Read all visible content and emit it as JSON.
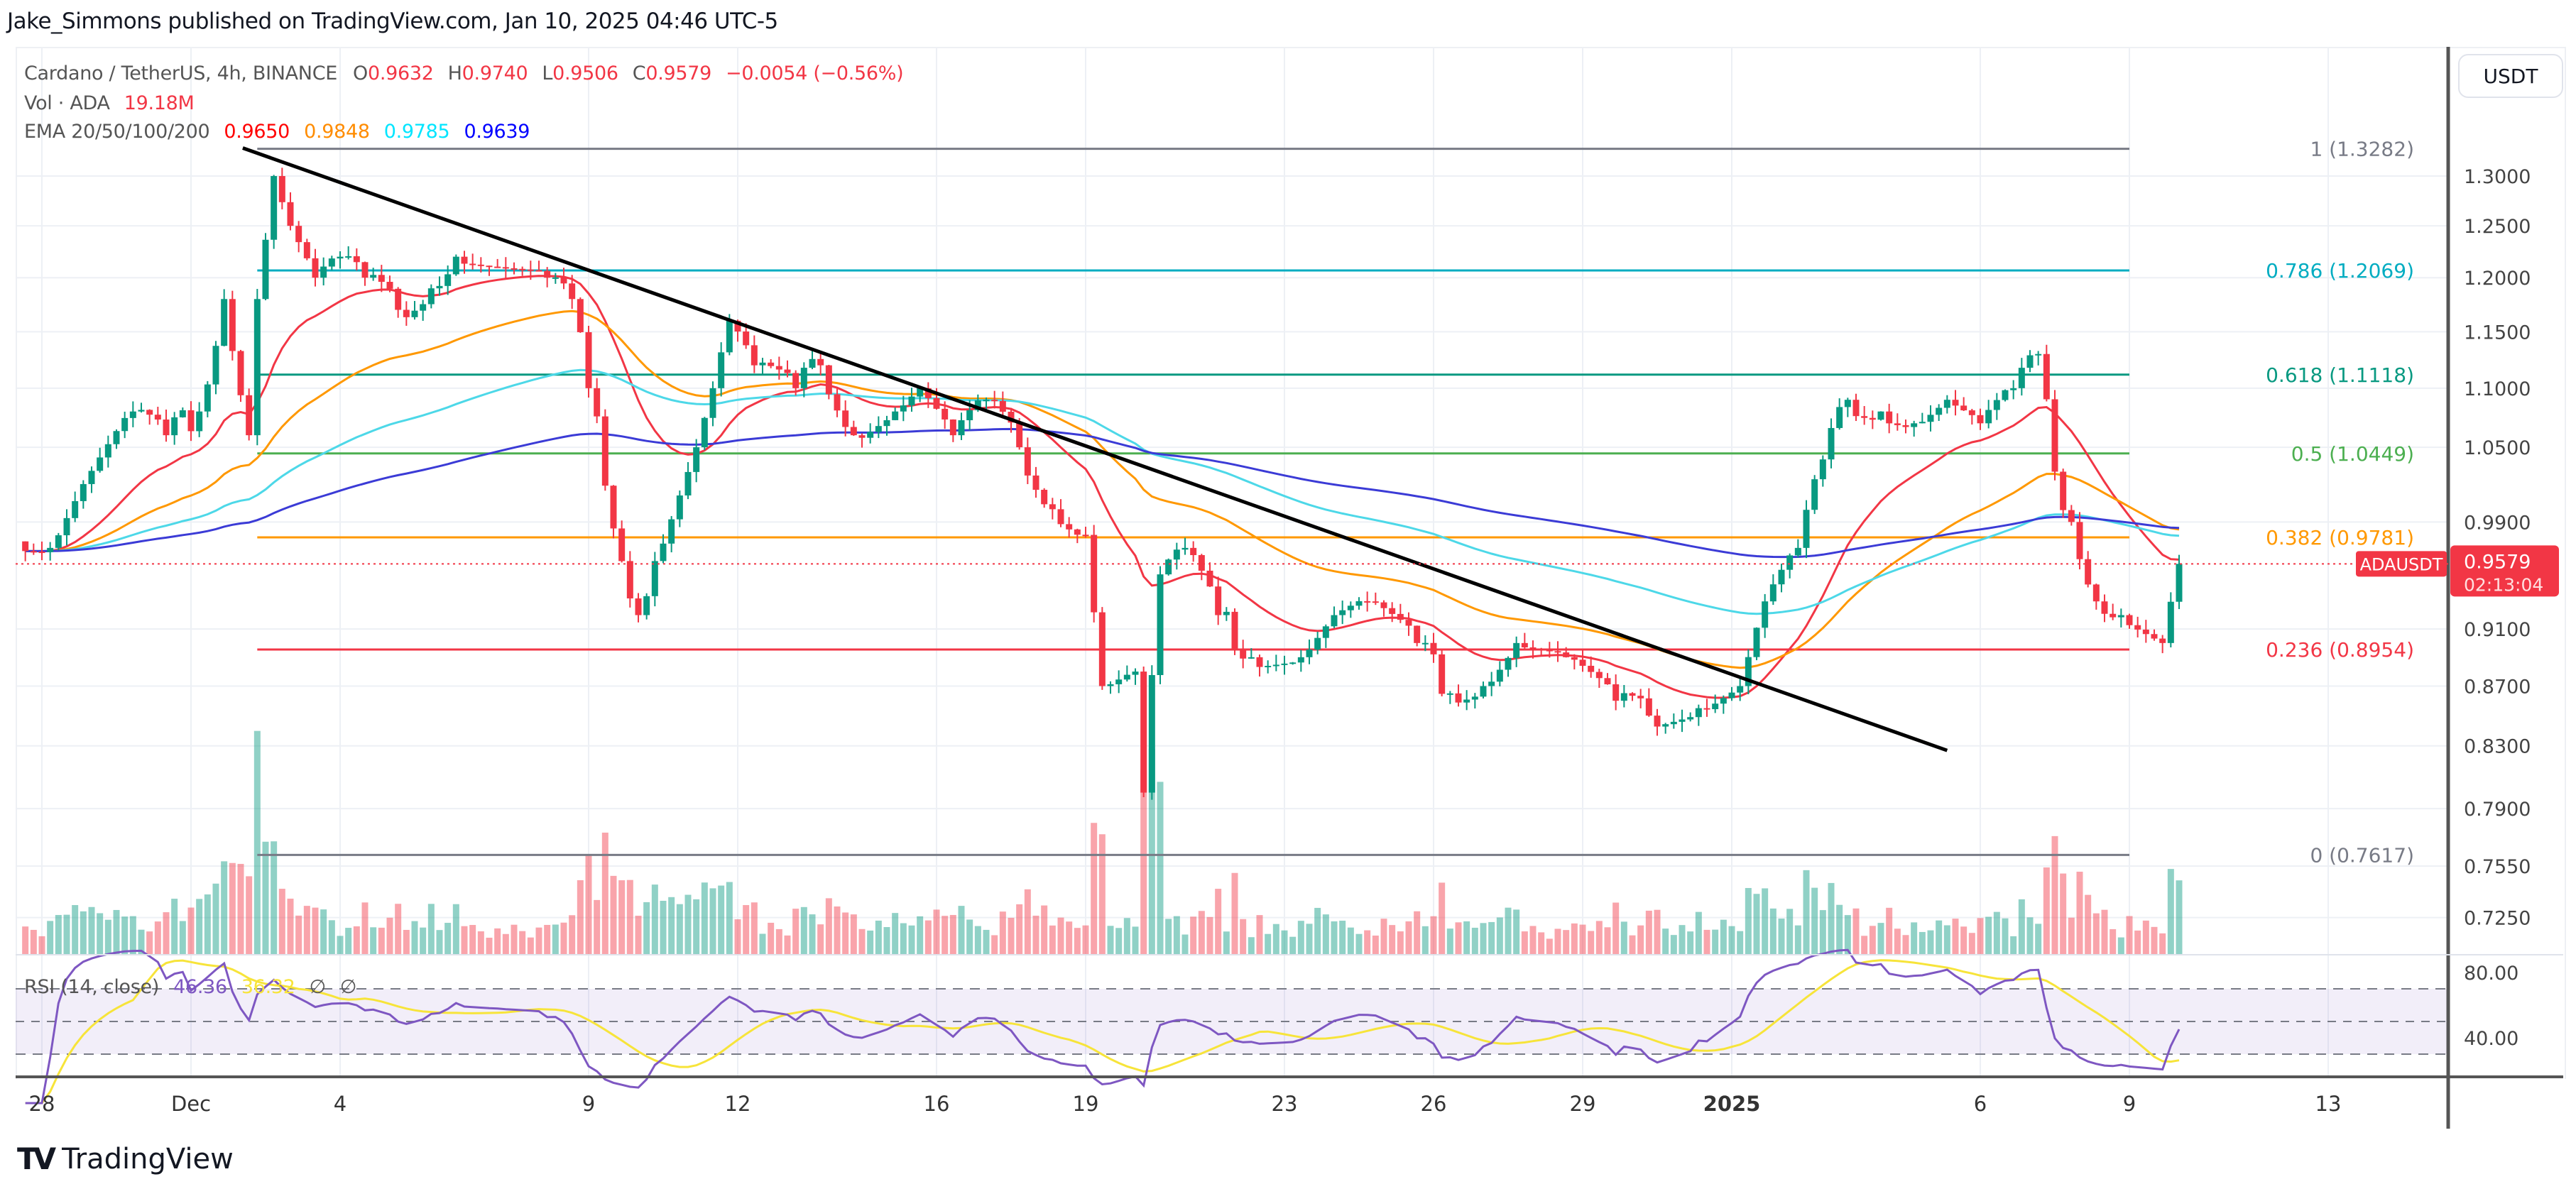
{
  "header": {
    "published": "Jake_Simmons published on TradingView.com, Jan 10, 2025 04:46 UTC-5"
  },
  "legend": {
    "symbol": "Cardano / TetherUS, 4h, BINANCE",
    "o_label": "O",
    "o": "0.9632",
    "h_label": "H",
    "h": "0.9740",
    "l_label": "L",
    "l": "0.9506",
    "c_label": "C",
    "c": "0.9579",
    "change": "−0.0054 (−0.56%)",
    "vol_label": "Vol · ADA",
    "vol": "19.18M",
    "ema_label": "EMA 20/50/100/200",
    "ema": [
      "0.9650",
      "0.9848",
      "0.9785",
      "0.9639"
    ]
  },
  "colors": {
    "up": "#089981",
    "down": "#f23645",
    "ema": [
      "#f23645",
      "#ff9800",
      "#4dd8e8",
      "#3b3bd6"
    ],
    "ema_legend": [
      "#ff0000",
      "#ff8c00",
      "#00e5ff",
      "#0000ff"
    ],
    "rsi": "#7e57c2",
    "rsi_ma": "#f7e43a",
    "trendline": "#000000"
  },
  "axis": {
    "currency_button": "USDT",
    "symbol_tag": "ADAUSDT",
    "last_price": "0.9579",
    "countdown": "02:13:04"
  },
  "rsi": {
    "label": "RSI (14, close)",
    "value": "46.36",
    "ma_value": "36.32",
    "na1": "∅",
    "na2": "∅",
    "ticks": [
      "80.00",
      "40.00"
    ]
  },
  "footer": {
    "logo_text": "TradingView"
  },
  "chart_data": {
    "type": "candlestick",
    "title": "Cardano / TetherUS, 4h, BINANCE",
    "y_scale": "log",
    "ylim": [
      0.7,
      1.36
    ],
    "y_ticks": [
      "1.3000",
      "1.2500",
      "1.2000",
      "1.1500",
      "1.1000",
      "1.0500",
      "0.9900",
      "0.9100",
      "0.8700",
      "0.8300",
      "0.7900",
      "0.7550",
      "0.7250"
    ],
    "x_ticks": [
      {
        "label": "28",
        "date": "2024-11-28"
      },
      {
        "label": "Dec",
        "date": "2024-12-01"
      },
      {
        "label": "4",
        "date": "2024-12-04"
      },
      {
        "label": "9",
        "date": "2024-12-09"
      },
      {
        "label": "12",
        "date": "2024-12-12"
      },
      {
        "label": "16",
        "date": "2024-12-16"
      },
      {
        "label": "19",
        "date": "2024-12-19"
      },
      {
        "label": "23",
        "date": "2024-12-23"
      },
      {
        "label": "26",
        "date": "2024-12-26"
      },
      {
        "label": "29",
        "date": "2024-12-29"
      },
      {
        "label": "2025",
        "date": "2025-01-01"
      },
      {
        "label": "6",
        "date": "2025-01-06"
      },
      {
        "label": "9",
        "date": "2025-01-09"
      },
      {
        "label": "13",
        "date": "2025-01-13"
      }
    ],
    "grid": true,
    "close_series": [
      [
        "2024-11-27 12:00",
        0.975
      ],
      [
        "2024-11-28 04:00",
        0.97
      ],
      [
        "2024-11-28 20:00",
        1.02
      ],
      [
        "2024-11-29 20:00",
        1.08
      ],
      [
        "2024-11-30 12:00",
        1.06
      ],
      [
        "2024-12-01 04:00",
        1.08
      ],
      [
        "2024-12-01 16:00",
        1.18
      ],
      [
        "2024-12-02 04:00",
        1.06
      ],
      [
        "2024-12-02 08:00",
        1.18
      ],
      [
        "2024-12-02 16:00",
        1.3
      ],
      [
        "2024-12-03 00:00",
        1.25
      ],
      [
        "2024-12-03 12:00",
        1.2
      ],
      [
        "2024-12-04 00:00",
        1.22
      ],
      [
        "2024-12-04 12:00",
        1.2
      ],
      [
        "2024-12-05 04:00",
        1.17
      ],
      [
        "2024-12-05 20:00",
        1.19
      ],
      [
        "2024-12-06 08:00",
        1.22
      ],
      [
        "2024-12-07 04:00",
        1.21
      ],
      [
        "2024-12-08 04:00",
        1.2
      ],
      [
        "2024-12-08 16:00",
        1.18
      ],
      [
        "2024-12-09 00:00",
        1.1
      ],
      [
        "2024-12-09 16:00",
        0.96
      ],
      [
        "2024-12-10 00:00",
        0.92
      ],
      [
        "2024-12-10 08:00",
        0.96
      ],
      [
        "2024-12-11 04:00",
        1.05
      ],
      [
        "2024-12-11 12:00",
        1.1
      ],
      [
        "2024-12-11 20:00",
        1.16
      ],
      [
        "2024-12-12 08:00",
        1.12
      ],
      [
        "2024-12-13 04:00",
        1.1
      ],
      [
        "2024-12-13 16:00",
        1.12
      ],
      [
        "2024-12-14 08:00",
        1.06
      ],
      [
        "2024-12-15 04:00",
        1.08
      ],
      [
        "2024-12-15 16:00",
        1.1
      ],
      [
        "2024-12-16 08:00",
        1.06
      ],
      [
        "2024-12-17 00:00",
        1.09
      ],
      [
        "2024-12-17 16:00",
        1.05
      ],
      [
        "2024-12-18 08:00",
        1.0
      ],
      [
        "2024-12-19 00:00",
        0.98
      ],
      [
        "2024-12-19 08:00",
        0.87
      ],
      [
        "2024-12-20 00:00",
        0.88
      ],
      [
        "2024-12-20 04:00",
        0.8
      ],
      [
        "2024-12-20 12:00",
        0.95
      ],
      [
        "2024-12-21 00:00",
        0.97
      ],
      [
        "2024-12-21 16:00",
        0.92
      ],
      [
        "2024-12-22 08:00",
        0.89
      ],
      [
        "2024-12-23 08:00",
        0.89
      ],
      [
        "2024-12-24 00:00",
        0.92
      ],
      [
        "2024-12-24 16:00",
        0.93
      ],
      [
        "2024-12-25 16:00",
        0.9
      ],
      [
        "2024-12-26 08:00",
        0.865
      ],
      [
        "2024-12-27 00:00",
        0.87
      ],
      [
        "2024-12-27 16:00",
        0.9
      ],
      [
        "2024-12-28 16:00",
        0.89
      ],
      [
        "2024-12-29 16:00",
        0.86
      ],
      [
        "2024-12-30 08:00",
        0.85
      ],
      [
        "2024-12-31 08:00",
        0.855
      ],
      [
        "2025-01-01 04:00",
        0.87
      ],
      [
        "2025-01-01 16:00",
        0.93
      ],
      [
        "2025-01-02 08:00",
        0.97
      ],
      [
        "2025-01-02 20:00",
        1.04
      ],
      [
        "2025-01-03 08:00",
        1.09
      ],
      [
        "2025-01-04 00:00",
        1.08
      ],
      [
        "2025-01-04 16:00",
        1.07
      ],
      [
        "2025-01-05 08:00",
        1.09
      ],
      [
        "2025-01-06 00:00",
        1.07
      ],
      [
        "2025-01-06 16:00",
        1.1
      ],
      [
        "2025-01-07 04:00",
        1.13
      ],
      [
        "2025-01-07 12:00",
        1.03
      ],
      [
        "2025-01-07 20:00",
        0.99
      ],
      [
        "2025-01-08 08:00",
        0.93
      ],
      [
        "2025-01-08 20:00",
        0.92
      ],
      [
        "2025-01-09 16:00",
        0.9
      ],
      [
        "2025-01-10 00:00",
        0.9579
      ]
    ],
    "fib_levels": [
      {
        "ratio": "1",
        "price": 1.3282,
        "label": "1 (1.3282)",
        "color": "#787b86"
      },
      {
        "ratio": "0.786",
        "price": 1.2069,
        "label": "0.786 (1.2069)",
        "color": "#00acc1"
      },
      {
        "ratio": "0.618",
        "price": 1.1118,
        "label": "0.618 (1.1118)",
        "color": "#089981"
      },
      {
        "ratio": "0.5",
        "price": 1.0449,
        "label": "0.5 (1.0449)",
        "color": "#4caf50"
      },
      {
        "ratio": "0.382",
        "price": 0.9781,
        "label": "0.382 (0.9781)",
        "color": "#ff9800"
      },
      {
        "ratio": "0.236",
        "price": 0.8954,
        "label": "0.236 (0.8954)",
        "color": "#f23645"
      },
      {
        "ratio": "0",
        "price": 0.7617,
        "label": "0 (0.7617)",
        "color": "#787b86"
      }
    ],
    "fib_range": [
      "2024-12-02 08:00",
      "2025-01-09 00:00"
    ],
    "trendline": [
      [
        "2024-12-02 01:00",
        1.329
      ],
      [
        "2025-01-05 08:00",
        0.827
      ]
    ],
    "last_price": 0.9579,
    "rsi_levels": [
      70,
      50,
      30
    ]
  }
}
